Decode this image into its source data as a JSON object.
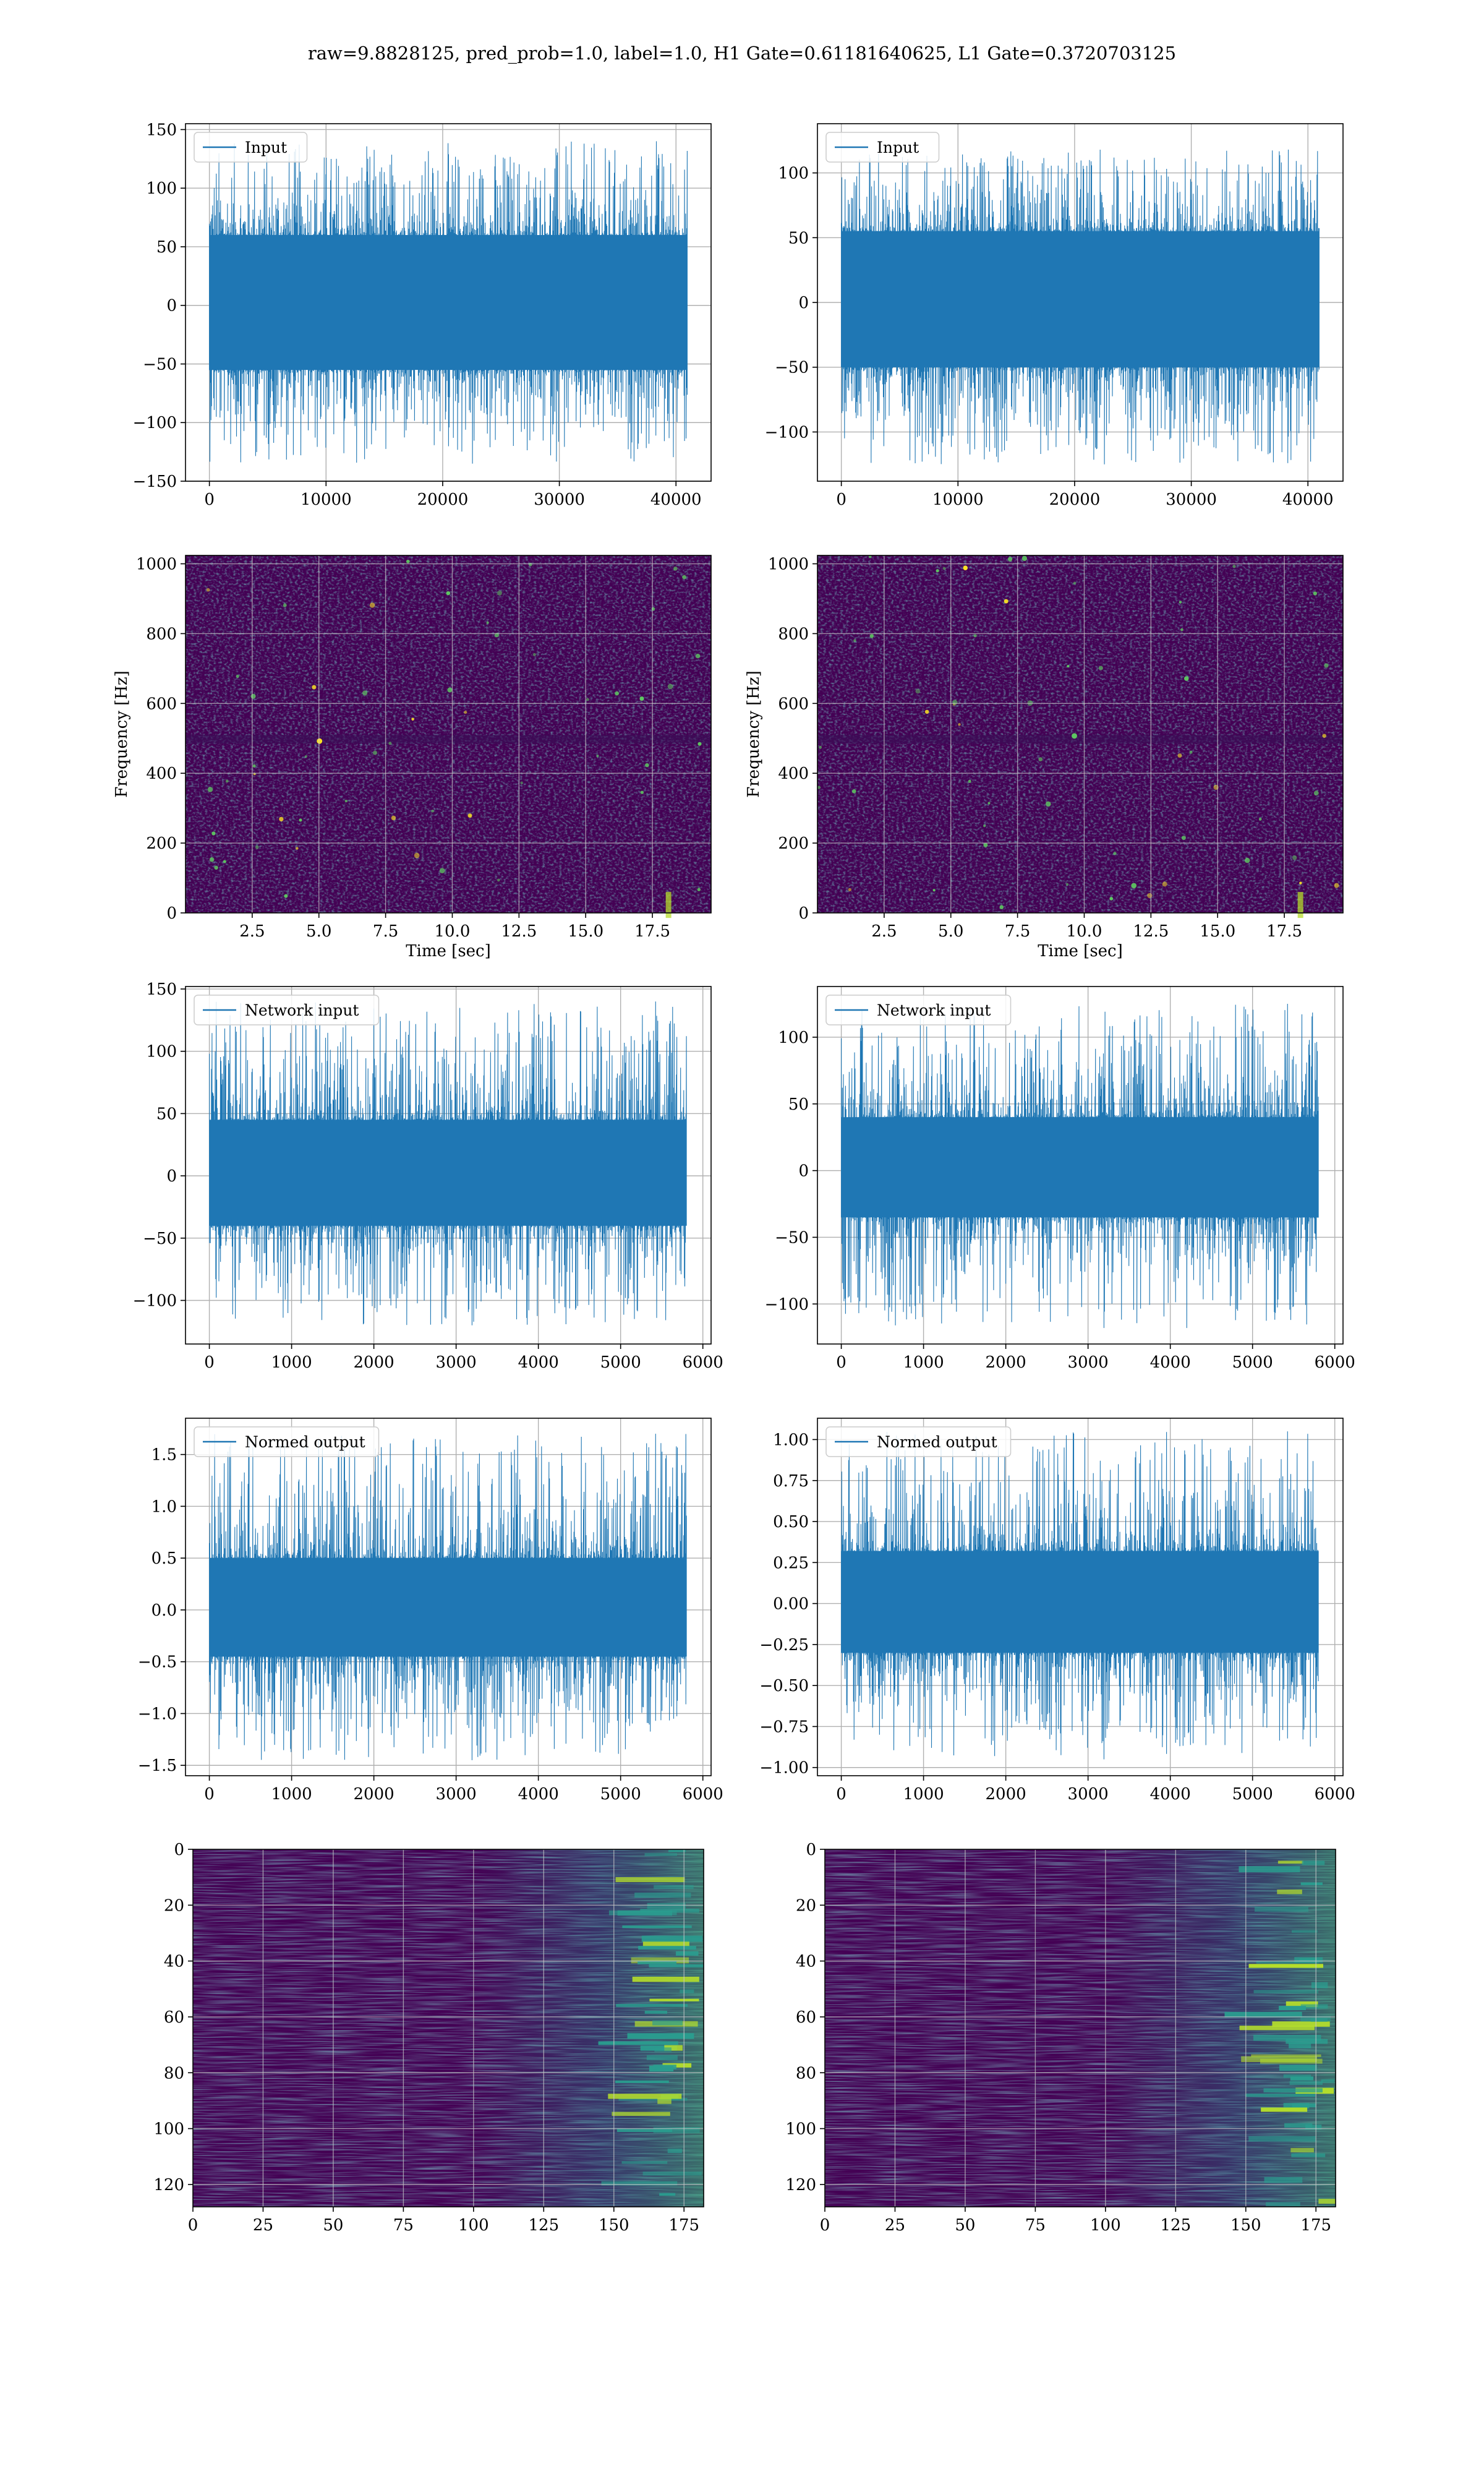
{
  "figure": {
    "title": "raw=9.8828125, pred_prob=1.0, label=1.0, H1 Gate=0.61181640625, L1 Gate=0.3720703125",
    "colors": {
      "line": "#1f77b4",
      "grid": "#b0b0b0"
    }
  },
  "chart_data": [
    {
      "id": "h1-input",
      "type": "line",
      "legend": [
        "Input"
      ],
      "xlim": [
        -2048,
        43008
      ],
      "ylim": [
        -150,
        155
      ],
      "xticks": [
        0,
        10000,
        20000,
        30000,
        40000
      ],
      "yticks": [
        -150,
        -100,
        -50,
        0,
        50,
        100,
        150
      ],
      "xticklabels": [
        "0",
        "10000",
        "20000",
        "30000",
        "40000"
      ],
      "yticklabels": [
        "−150",
        "−100",
        "−50",
        "0",
        "50",
        "100",
        "150"
      ],
      "series": [
        {
          "x_range": [
            0,
            40960
          ],
          "band": [
            -55,
            60
          ],
          "peak_max": 140,
          "peak_min": -135
        }
      ]
    },
    {
      "id": "l1-input",
      "type": "line",
      "legend": [
        "Input"
      ],
      "xlim": [
        -2048,
        43008
      ],
      "ylim": [
        -138,
        138
      ],
      "xticks": [
        0,
        10000,
        20000,
        30000,
        40000
      ],
      "yticks": [
        -100,
        -50,
        0,
        50,
        100
      ],
      "xticklabels": [
        "0",
        "10000",
        "20000",
        "30000",
        "40000"
      ],
      "yticklabels": [
        "−100",
        "−50",
        "0",
        "50",
        "100"
      ],
      "series": [
        {
          "x_range": [
            0,
            40960
          ],
          "band": [
            -50,
            55
          ],
          "peak_max": 118,
          "peak_min": -125
        }
      ]
    },
    {
      "id": "h1-spec",
      "type": "heatmap",
      "xlabel": "Time [sec]",
      "ylabel": "Frequency [Hz]",
      "xlim": [
        0,
        19.7
      ],
      "ylim": [
        0,
        1024
      ],
      "xticks": [
        2.5,
        5,
        7.5,
        10,
        12.5,
        15,
        17.5
      ],
      "yticks": [
        0,
        200,
        400,
        600,
        800,
        1000
      ],
      "xticklabels": [
        "2.5",
        "5.0",
        "7.5",
        "10.0",
        "12.5",
        "15.0",
        "17.5"
      ],
      "yticklabels": [
        "0",
        "200",
        "400",
        "600",
        "800",
        "1000"
      ],
      "colormap": "viridis"
    },
    {
      "id": "l1-spec",
      "type": "heatmap",
      "xlabel": "Time [sec]",
      "ylabel": "Frequency [Hz]",
      "xlim": [
        0,
        19.7
      ],
      "ylim": [
        0,
        1024
      ],
      "xticks": [
        2.5,
        5,
        7.5,
        10,
        12.5,
        15,
        17.5
      ],
      "yticks": [
        0,
        200,
        400,
        600,
        800,
        1000
      ],
      "xticklabels": [
        "2.5",
        "5.0",
        "7.5",
        "10.0",
        "12.5",
        "15.0",
        "17.5"
      ],
      "yticklabels": [
        "0",
        "200",
        "400",
        "600",
        "800",
        "1000"
      ],
      "colormap": "viridis"
    },
    {
      "id": "h1-net",
      "type": "line",
      "legend": [
        "Network input"
      ],
      "xlim": [
        -290,
        6100
      ],
      "ylim": [
        -135,
        152
      ],
      "xticks": [
        0,
        1000,
        2000,
        3000,
        4000,
        5000,
        6000
      ],
      "yticks": [
        -100,
        -50,
        0,
        50,
        100,
        150
      ],
      "xticklabels": [
        "0",
        "1000",
        "2000",
        "3000",
        "4000",
        "5000",
        "6000"
      ],
      "yticklabels": [
        "−100",
        "−50",
        "0",
        "50",
        "100",
        "150"
      ],
      "series": [
        {
          "x_range": [
            0,
            5800
          ],
          "band": [
            -40,
            45
          ],
          "peak_max": 140,
          "peak_min": -120
        }
      ]
    },
    {
      "id": "l1-net",
      "type": "line",
      "legend": [
        "Network input"
      ],
      "xlim": [
        -290,
        6100
      ],
      "ylim": [
        -130,
        138
      ],
      "xticks": [
        0,
        1000,
        2000,
        3000,
        4000,
        5000,
        6000
      ],
      "yticks": [
        -100,
        -50,
        0,
        50,
        100
      ],
      "xticklabels": [
        "0",
        "1000",
        "2000",
        "3000",
        "4000",
        "5000",
        "6000"
      ],
      "yticklabels": [
        "−100",
        "−50",
        "0",
        "50",
        "100"
      ],
      "series": [
        {
          "x_range": [
            0,
            5800
          ],
          "band": [
            -35,
            40
          ],
          "peak_max": 125,
          "peak_min": -118
        }
      ]
    },
    {
      "id": "h1-norm",
      "type": "line",
      "legend": [
        "Normed output"
      ],
      "xlim": [
        -290,
        6100
      ],
      "ylim": [
        -1.6,
        1.85
      ],
      "xticks": [
        0,
        1000,
        2000,
        3000,
        4000,
        5000,
        6000
      ],
      "yticks": [
        -1.5,
        -1.0,
        -0.5,
        0.0,
        0.5,
        1.0,
        1.5
      ],
      "xticklabels": [
        "0",
        "1000",
        "2000",
        "3000",
        "4000",
        "5000",
        "6000"
      ],
      "yticklabels": [
        "−1.5",
        "−1.0",
        "−0.5",
        "0.0",
        "0.5",
        "1.0",
        "1.5"
      ],
      "series": [
        {
          "x_range": [
            0,
            5800
          ],
          "band": [
            -0.45,
            0.5
          ],
          "peak_max": 1.7,
          "peak_min": -1.45
        }
      ]
    },
    {
      "id": "l1-norm",
      "type": "line",
      "legend": [
        "Normed output"
      ],
      "xlim": [
        -290,
        6100
      ],
      "ylim": [
        -1.05,
        1.13
      ],
      "xticks": [
        0,
        1000,
        2000,
        3000,
        4000,
        5000,
        6000
      ],
      "yticks": [
        -1.0,
        -0.75,
        -0.5,
        -0.25,
        0.0,
        0.25,
        0.5,
        0.75,
        1.0
      ],
      "xticklabels": [
        "0",
        "1000",
        "2000",
        "3000",
        "4000",
        "5000",
        "6000"
      ],
      "yticklabels": [
        "−1.00",
        "−0.75",
        "−0.50",
        "−0.25",
        "0.00",
        "0.25",
        "0.50",
        "0.75",
        "1.00"
      ],
      "series": [
        {
          "x_range": [
            0,
            5800
          ],
          "band": [
            -0.3,
            0.32
          ],
          "peak_max": 1.05,
          "peak_min": -0.95
        }
      ]
    },
    {
      "id": "h1-feat",
      "type": "heatmap",
      "xlim": [
        0,
        182
      ],
      "ylim": [
        128,
        0
      ],
      "xticks": [
        0,
        25,
        50,
        75,
        100,
        125,
        150,
        175
      ],
      "yticks": [
        0,
        20,
        40,
        60,
        80,
        100,
        120
      ],
      "xticklabels": [
        "0",
        "25",
        "50",
        "75",
        "100",
        "125",
        "150",
        "175"
      ],
      "yticklabels": [
        "0",
        "20",
        "40",
        "60",
        "80",
        "100",
        "120"
      ],
      "colormap": "viridis"
    },
    {
      "id": "l1-feat",
      "type": "heatmap",
      "xlim": [
        0,
        182
      ],
      "ylim": [
        128,
        0
      ],
      "xticks": [
        0,
        25,
        50,
        75,
        100,
        125,
        150,
        175
      ],
      "yticks": [
        0,
        20,
        40,
        60,
        80,
        100,
        120
      ],
      "xticklabels": [
        "0",
        "25",
        "50",
        "75",
        "100",
        "125",
        "150",
        "175"
      ],
      "yticklabels": [
        "0",
        "20",
        "40",
        "60",
        "80",
        "100",
        "120"
      ],
      "colormap": "viridis"
    }
  ]
}
